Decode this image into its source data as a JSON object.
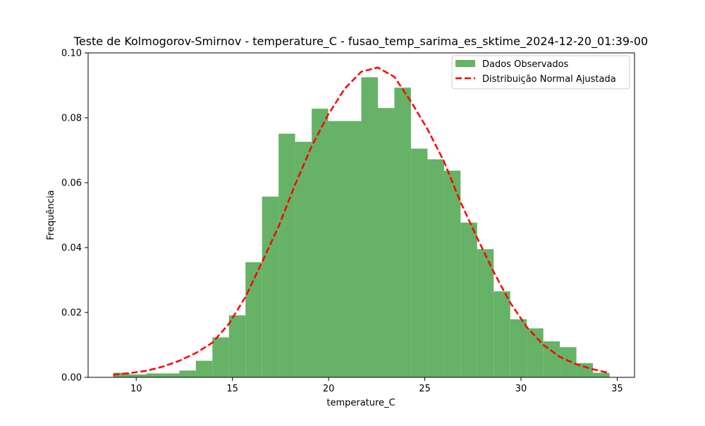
{
  "chart_data": {
    "type": "bar",
    "title": "Teste de Kolmogorov-Smirnov - temperature_C - fusao_temp_sarima_es_sktime_2024-12-20_01:39-00",
    "xlabel": "temperature_C",
    "ylabel": "Frequência",
    "xlim": [
      7.5,
      35.9
    ],
    "ylim": [
      0,
      0.1
    ],
    "xticks": [
      10,
      15,
      20,
      25,
      30,
      35
    ],
    "yticks": [
      0.0,
      0.02,
      0.04,
      0.06,
      0.08,
      0.1
    ],
    "ytick_labels": [
      "0.00",
      "0.02",
      "0.04",
      "0.06",
      "0.08",
      "0.10"
    ],
    "grid": false,
    "legend_position": "top-right",
    "histogram": {
      "name": "Dados Observados",
      "color": "#66b266",
      "bin_edges": [
        8.8,
        9.66,
        10.52,
        11.38,
        12.24,
        13.1,
        13.96,
        14.82,
        15.68,
        16.54,
        17.4,
        18.26,
        19.12,
        19.98,
        20.84,
        21.7,
        22.56,
        23.42,
        24.28,
        25.14,
        26.0,
        26.86,
        27.72,
        28.58,
        29.44,
        30.3,
        31.16,
        32.02,
        32.88,
        33.74,
        34.6
      ],
      "values": [
        0.0014,
        0.0009,
        0.0012,
        0.0012,
        0.0021,
        0.0051,
        0.0123,
        0.0191,
        0.0355,
        0.0557,
        0.0751,
        0.0726,
        0.0828,
        0.079,
        0.079,
        0.0925,
        0.083,
        0.0893,
        0.0705,
        0.0672,
        0.0637,
        0.0477,
        0.0395,
        0.0265,
        0.0179,
        0.0151,
        0.0111,
        0.0093,
        0.0044,
        0.0014
      ]
    },
    "normal_fit": {
      "name": "Distribuição Normal Ajustada",
      "color": "#ff0000",
      "x": [
        8.8,
        9.66,
        10.52,
        11.38,
        12.24,
        13.1,
        13.96,
        14.82,
        15.68,
        16.54,
        17.4,
        18.26,
        19.12,
        19.98,
        20.84,
        21.7,
        22.56,
        23.42,
        24.28,
        25.14,
        26.0,
        26.86,
        27.72,
        28.58,
        29.44,
        30.3,
        31.16,
        32.02,
        32.88,
        33.74,
        34.6
      ],
      "y": [
        0.0008,
        0.0013,
        0.002,
        0.0033,
        0.0051,
        0.0075,
        0.0107,
        0.0165,
        0.0248,
        0.0355,
        0.0465,
        0.0594,
        0.0712,
        0.081,
        0.089,
        0.0942,
        0.0955,
        0.0926,
        0.085,
        0.0765,
        0.0665,
        0.054,
        0.043,
        0.0325,
        0.023,
        0.0155,
        0.01,
        0.0063,
        0.004,
        0.0025,
        0.0013
      ]
    }
  }
}
